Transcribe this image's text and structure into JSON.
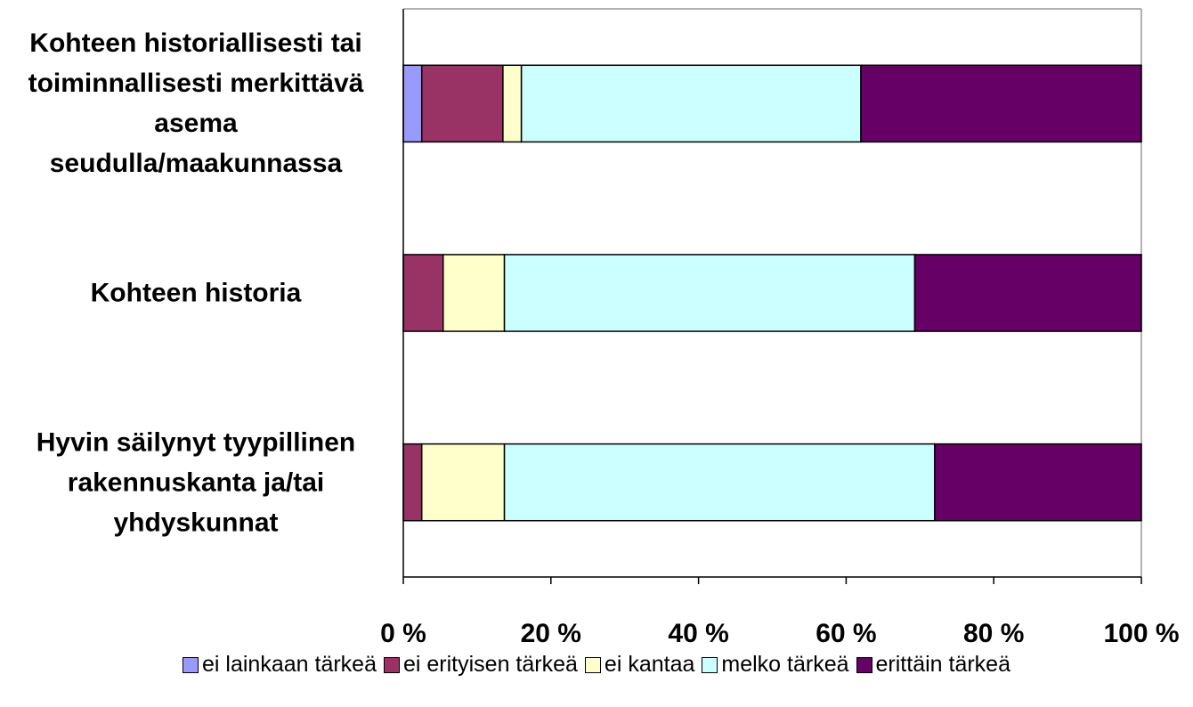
{
  "chart_data": {
    "type": "stacked_bar_horizontal",
    "categories": [
      "Kohteen historiallisesti tai toiminnallisesti merkittävä asema seudulla/maakunnassa",
      "Kohteen historia",
      "Hyvin säilynyt tyypillinen rakennuskanta ja/tai yhdyskunnat"
    ],
    "series": [
      {
        "name": "ei lainkaan tärkeä",
        "color": "#9999ff",
        "values": [
          2.5,
          0,
          0
        ]
      },
      {
        "name": "ei erityisen tärkeä",
        "color": "#993366",
        "values": [
          11,
          5.4,
          2.5
        ]
      },
      {
        "name": "ei kantaa",
        "color": "#ffffcc",
        "values": [
          2.5,
          8.3,
          11.2
        ]
      },
      {
        "name": "melko tärkeä",
        "color": "#ccffff",
        "values": [
          46,
          55.6,
          58.3
        ]
      },
      {
        "name": "erittäin tärkeä",
        "color": "#660066",
        "values": [
          38,
          30.7,
          28
        ]
      }
    ],
    "xlim": [
      0,
      100
    ],
    "xticks": [
      {
        "value": 0,
        "label": "0 %"
      },
      {
        "value": 20,
        "label": "20 %"
      },
      {
        "value": 40,
        "label": "40 %"
      },
      {
        "value": 60,
        "label": "60 %"
      },
      {
        "value": 80,
        "label": "80 %"
      },
      {
        "value": 100,
        "label": "100 %"
      }
    ],
    "legend": "bottom"
  }
}
